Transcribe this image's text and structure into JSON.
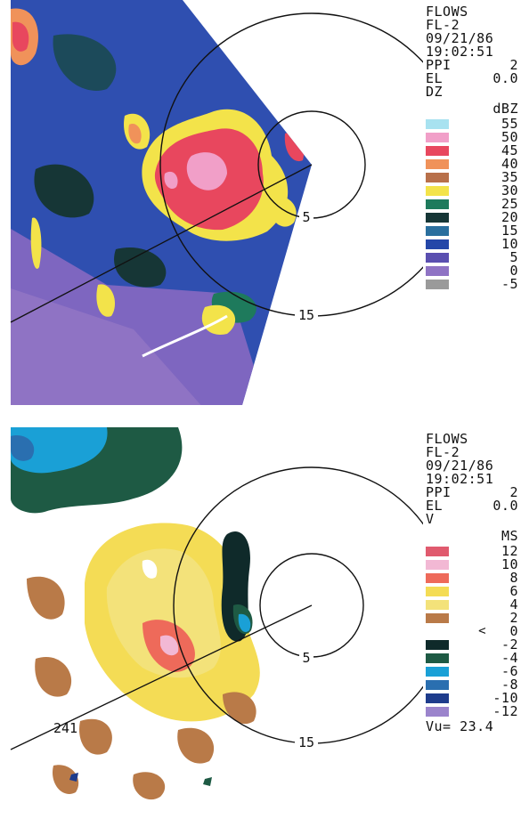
{
  "top": {
    "header": [
      "FLOWS",
      "FL-2",
      "09/21/86",
      "19:02:51"
    ],
    "ppi_label": "PPI",
    "ppi_value": "2",
    "el_label": "EL",
    "el_value": "0.0",
    "field": "DZ",
    "unit": "dBZ",
    "ring_labels": [
      "5",
      "15"
    ],
    "legend": [
      {
        "value": "55",
        "color": "#a8e2f0"
      },
      {
        "value": "50",
        "color": "#f19fc8"
      },
      {
        "value": "45",
        "color": "#e8475e"
      },
      {
        "value": "40",
        "color": "#f0925a"
      },
      {
        "value": "35",
        "color": "#b8704a"
      },
      {
        "value": "30",
        "color": "#f3e34a"
      },
      {
        "value": "25",
        "color": "#1e7a5c"
      },
      {
        "value": "20",
        "color": "#163636"
      },
      {
        "value": "15",
        "color": "#2a6f9e"
      },
      {
        "value": "10",
        "color": "#2447a8"
      },
      {
        "value": "5",
        "color": "#5a4fb0"
      },
      {
        "value": "0",
        "color": "#8f73c4"
      },
      {
        "value": "-5",
        "color": "#9a9a9a"
      }
    ]
  },
  "bottom": {
    "header": [
      "FLOWS",
      "FL-2",
      "09/21/86",
      "19:02:51"
    ],
    "ppi_label": "PPI",
    "ppi_value": "2",
    "el_label": "EL",
    "el_value": "0.0",
    "field": "V",
    "unit": "MS",
    "ring_labels": [
      "5",
      "15"
    ],
    "radial_label": "241",
    "arrow": "<",
    "legend": [
      {
        "value": "12",
        "color": "#e05a6e"
      },
      {
        "value": "10",
        "color": "#f2b8d4"
      },
      {
        "value": "8",
        "color": "#ee6a5a"
      },
      {
        "value": "6",
        "color": "#f4dc55"
      },
      {
        "value": "4",
        "color": "#f3e27a"
      },
      {
        "value": "2",
        "color": "#b97a48"
      },
      {
        "value": "0",
        "color": "#ffffff"
      },
      {
        "value": "-2",
        "color": "#0f2a2a"
      },
      {
        "value": "-4",
        "color": "#1e5a44"
      },
      {
        "value": "-6",
        "color": "#1aa0d6"
      },
      {
        "value": "-8",
        "color": "#2a6fb0"
      },
      {
        "value": "-10",
        "color": "#1e3c8c"
      },
      {
        "value": "-12",
        "color": "#9b84cc"
      }
    ],
    "vu_label": "Vu=",
    "vu_value": "23.4"
  }
}
